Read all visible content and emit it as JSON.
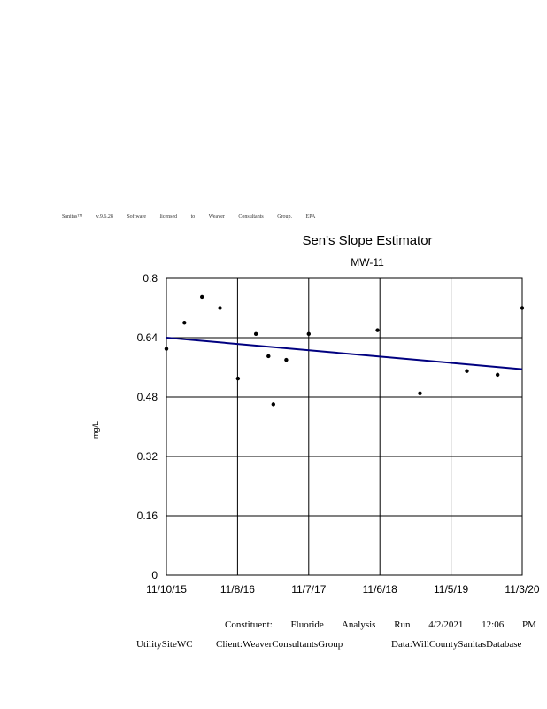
{
  "software_banner": "Sanitas™ v.9.6.28 Software licensed to Weaver Consultants Group. EPA",
  "chart_data": {
    "type": "scatter",
    "title": "Sen's Slope Estimator",
    "subtitle": "MW-11",
    "ylabel": "mg/L",
    "xlabel": "",
    "ylim": [
      0,
      0.8
    ],
    "yticks": [
      "0",
      "0.16",
      "0.32",
      "0.48",
      "0.64",
      "0.8"
    ],
    "xticks": [
      "11/10/15",
      "11/8/16",
      "11/7/17",
      "11/6/18",
      "11/5/19",
      "11/3/20"
    ],
    "xlim": [
      "2015-11-10",
      "2020-11-03"
    ],
    "grid": true,
    "series": [
      {
        "points": [
          {
            "x": "2015-11-10",
            "y": 0.61
          },
          {
            "x": "2016-02-10",
            "y": 0.68
          },
          {
            "x": "2016-05-10",
            "y": 0.75
          },
          {
            "x": "2016-08-10",
            "y": 0.72
          },
          {
            "x": "2016-11-10",
            "y": 0.53
          },
          {
            "x": "2017-02-10",
            "y": 0.65
          },
          {
            "x": "2017-05-10",
            "y": 0.46
          },
          {
            "x": "2017-04-15",
            "y": 0.59
          },
          {
            "x": "2017-07-15",
            "y": 0.58
          },
          {
            "x": "2017-11-07",
            "y": 0.65
          },
          {
            "x": "2018-10-25",
            "y": 0.66
          },
          {
            "x": "2019-05-30",
            "y": 0.49
          },
          {
            "x": "2020-01-25",
            "y": 0.55
          },
          {
            "x": "2020-06-30",
            "y": 0.54
          },
          {
            "x": "2020-11-03",
            "y": 0.72
          }
        ]
      }
    ],
    "trend_line": {
      "y_start": 0.64,
      "y_end": 0.555,
      "color": "#000080"
    }
  },
  "footer": {
    "line1": "Constituent: Fluoride Analysis Run 4/2/2021 12:06 PM",
    "site": "UtilitySiteWC",
    "client": "Client:WeaverConsultantsGroup",
    "data": "Data:WillCountySanitasDatabase"
  }
}
